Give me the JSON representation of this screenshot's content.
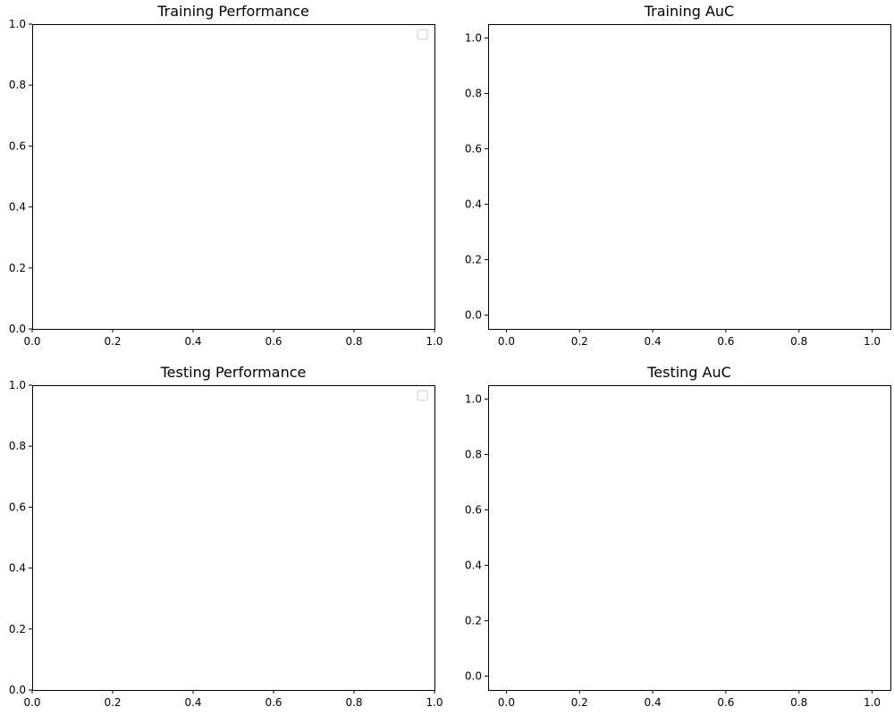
{
  "figure": {
    "background": "#ffffff",
    "axes_color": "#000000",
    "legend_color": "#cccccc"
  },
  "chart_data": [
    {
      "type": "line",
      "title": "Training Performance",
      "xlabel": "",
      "ylabel": "",
      "xlim": [
        0,
        1
      ],
      "ylim": [
        0,
        1
      ],
      "xticks": [
        "0.0",
        "0.2",
        "0.4",
        "0.6",
        "0.8",
        "1.0"
      ],
      "yticks": [
        "0.0",
        "0.2",
        "0.4",
        "0.6",
        "0.8",
        "1.0"
      ],
      "grid": false,
      "legend": {
        "placement": "top-right",
        "entries": []
      },
      "series": []
    },
    {
      "type": "line",
      "title": "Training AuC",
      "xlabel": "",
      "ylabel": "",
      "xlim": [
        -0.05,
        1.05
      ],
      "ylim": [
        -0.05,
        1.05
      ],
      "xticks": [
        "0.0",
        "0.2",
        "0.4",
        "0.6",
        "0.8",
        "1.0"
      ],
      "yticks": [
        "0.0",
        "0.2",
        "0.4",
        "0.6",
        "0.8",
        "1.0"
      ],
      "grid": false,
      "series": []
    },
    {
      "type": "line",
      "title": "Testing Performance",
      "xlabel": "",
      "ylabel": "",
      "xlim": [
        0,
        1
      ],
      "ylim": [
        0,
        1
      ],
      "xticks": [
        "0.0",
        "0.2",
        "0.4",
        "0.6",
        "0.8",
        "1.0"
      ],
      "yticks": [
        "0.0",
        "0.2",
        "0.4",
        "0.6",
        "0.8",
        "1.0"
      ],
      "grid": false,
      "legend": {
        "placement": "top-right",
        "entries": []
      },
      "series": []
    },
    {
      "type": "line",
      "title": "Testing AuC",
      "xlabel": "",
      "ylabel": "",
      "xlim": [
        -0.05,
        1.05
      ],
      "ylim": [
        -0.05,
        1.05
      ],
      "xticks": [
        "0.0",
        "0.2",
        "0.4",
        "0.6",
        "0.8",
        "1.0"
      ],
      "yticks": [
        "0.0",
        "0.2",
        "0.4",
        "0.6",
        "0.8",
        "1.0"
      ],
      "grid": false,
      "series": []
    }
  ]
}
